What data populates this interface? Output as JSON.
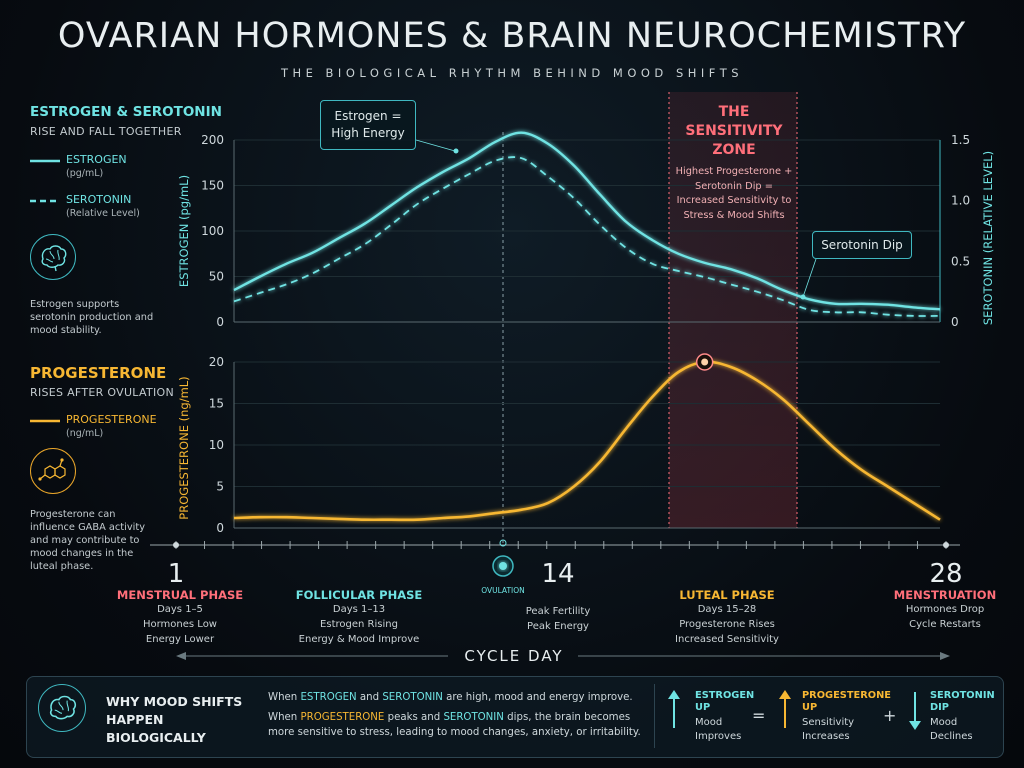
{
  "header": {
    "title": "OVARIAN HORMONES & BRAIN NEUROCHEMISTRY",
    "subtitle": "THE BIOLOGICAL RHYTHM BEHIND MOOD SHIFTS"
  },
  "left_panel": {
    "estrogen_heading": "ESTROGEN & SEROTONIN",
    "estrogen_sub": "RISE AND FALL TOGETHER",
    "legend_estrogen": "ESTROGEN",
    "legend_estrogen_unit": "(pg/mL)",
    "legend_serotonin": "SEROTONIN",
    "legend_serotonin_unit": "(Relative Level)",
    "estrogen_note": "Estrogen supports serotonin production and mood stability.",
    "brain_icon": "brain-icon",
    "progesterone_heading": "PROGESTERONE",
    "progesterone_sub": "RISES AFTER OVULATION",
    "legend_progesterone": "PROGESTERONE",
    "legend_progesterone_unit": "(ng/mL)",
    "molecule_icon": "molecule-icon",
    "progesterone_note": "Progesterone can influence GABA activity and may contribute to mood changes in the luteal phase."
  },
  "callouts": {
    "high_energy": "Estrogen = High Energy",
    "serotonin_dip": "Serotonin Dip",
    "zone_title": "THE SENSITIVITY ZONE",
    "zone_text": "Highest Progesterone + Serotonin Dip = Increased Sensitivity to Stress & Mood Shifts"
  },
  "chart_data": [
    {
      "type": "line",
      "ylabel": "ESTROGEN (pg/mL)",
      "y2label": "SEROTONIN (RELATIVE LEVEL)",
      "ylim": [
        0,
        200
      ],
      "y2lim": [
        0,
        1.5
      ],
      "yticks": [
        "200",
        "150",
        "100",
        "50",
        "0"
      ],
      "y2ticks": [
        "1.5",
        "1.0",
        "0.5",
        "0"
      ],
      "xlim": [
        1,
        28
      ],
      "series": [
        {
          "name": "ESTROGEN",
          "axis": "left",
          "color": "#6fe3e3",
          "style": "solid",
          "x": [
            1,
            2,
            3,
            4,
            5,
            6,
            7,
            8,
            9,
            10,
            11,
            12,
            13,
            14,
            15,
            16,
            17,
            18,
            19,
            20,
            21,
            22,
            23,
            24,
            25,
            26,
            27,
            28
          ],
          "y": [
            35,
            50,
            64,
            76,
            92,
            108,
            128,
            148,
            165,
            180,
            198,
            208,
            196,
            172,
            140,
            110,
            90,
            75,
            65,
            58,
            48,
            35,
            25,
            20,
            20,
            19,
            16,
            14
          ]
        },
        {
          "name": "SEROTONIN",
          "axis": "right",
          "color": "#6fe3e3",
          "style": "dashed",
          "x": [
            1,
            2,
            3,
            4,
            5,
            6,
            7,
            8,
            9,
            10,
            11,
            12,
            13,
            14,
            15,
            16,
            17,
            18,
            19,
            20,
            21,
            22,
            23,
            24,
            25,
            26,
            27,
            28
          ],
          "y": [
            0.17,
            0.24,
            0.31,
            0.4,
            0.52,
            0.64,
            0.8,
            0.97,
            1.1,
            1.22,
            1.33,
            1.35,
            1.2,
            1.02,
            0.8,
            0.61,
            0.48,
            0.42,
            0.37,
            0.31,
            0.25,
            0.18,
            0.1,
            0.08,
            0.08,
            0.06,
            0.05,
            0.05
          ]
        }
      ]
    },
    {
      "type": "line",
      "ylabel": "PROGESTERONE (ng/mL)",
      "ylim": [
        0,
        20
      ],
      "yticks": [
        "20",
        "15",
        "10",
        "5",
        "0"
      ],
      "xlim": [
        1,
        28
      ],
      "series": [
        {
          "name": "PROGESTERONE",
          "color": "#f7b733",
          "x": [
            1,
            2,
            3,
            4,
            5,
            6,
            7,
            8,
            9,
            10,
            11,
            12,
            13,
            14,
            15,
            16,
            17,
            18,
            19,
            20,
            21,
            22,
            23,
            24,
            25,
            26,
            27,
            28
          ],
          "y": [
            1.2,
            1.3,
            1.3,
            1.2,
            1.1,
            1.0,
            1.0,
            1.0,
            1.2,
            1.4,
            1.8,
            2.2,
            3.0,
            5.0,
            8.0,
            12.0,
            15.8,
            18.8,
            20.0,
            19.4,
            17.8,
            15.5,
            12.5,
            9.5,
            7.0,
            5.0,
            3.0,
            1.0
          ]
        }
      ],
      "peak_marker_day": 19
    }
  ],
  "axis": {
    "day_1": "1",
    "day_14": "14",
    "day_28": "28",
    "ovulation": "OVULATION",
    "cycle_day": "CYCLE DAY"
  },
  "phases": [
    {
      "title": "MENSTRUAL PHASE",
      "color": "#ff6f7a",
      "lines": [
        "Days 1–5",
        "Hormones Low",
        "Energy Lower"
      ]
    },
    {
      "title": "FOLLICULAR PHASE",
      "color": "#6fe3e3",
      "lines": [
        "Days 1–13",
        "Estrogen Rising",
        "Energy & Mood Improve"
      ]
    },
    {
      "title": "",
      "color": "#c9d1d4",
      "lines": [
        "Peak Fertility",
        "Peak Energy"
      ]
    },
    {
      "title": "LUTEAL PHASE",
      "color": "#f7b733",
      "lines": [
        "Days 15–28",
        "Progesterone Rises",
        "Increased Sensitivity"
      ]
    },
    {
      "title": "MENSTRUATION",
      "color": "#ff6f7a",
      "lines": [
        "Hormones Drop",
        "Cycle Restarts"
      ]
    }
  ],
  "bottom": {
    "heading": "WHY MOOD SHIFTS HAPPEN BIOLOGICALLY",
    "line1_a": "When ",
    "line1_estrogen": "ESTROGEN",
    "line1_b": " and ",
    "line1_serotonin": "SEROTONIN",
    "line1_c": " are high, mood and energy improve.",
    "line2_a": "When ",
    "line2_progesterone": "PROGESTERONE",
    "line2_b": " peaks and ",
    "line2_serotonin": "SEROTONIN",
    "line2_c": " dips, the brain becomes more sensitive to stress, leading to mood changes, anxiety, or irritability.",
    "eq1_title": "ESTROGEN UP",
    "eq1_text": "Mood Improves",
    "eq2_title": "PROGESTERONE UP",
    "eq2_text": "Sensitivity Increases",
    "eq3_title": "SEROTONIN DIP",
    "eq3_text": "Mood Declines",
    "op_equals": "=",
    "op_plus": "+"
  }
}
